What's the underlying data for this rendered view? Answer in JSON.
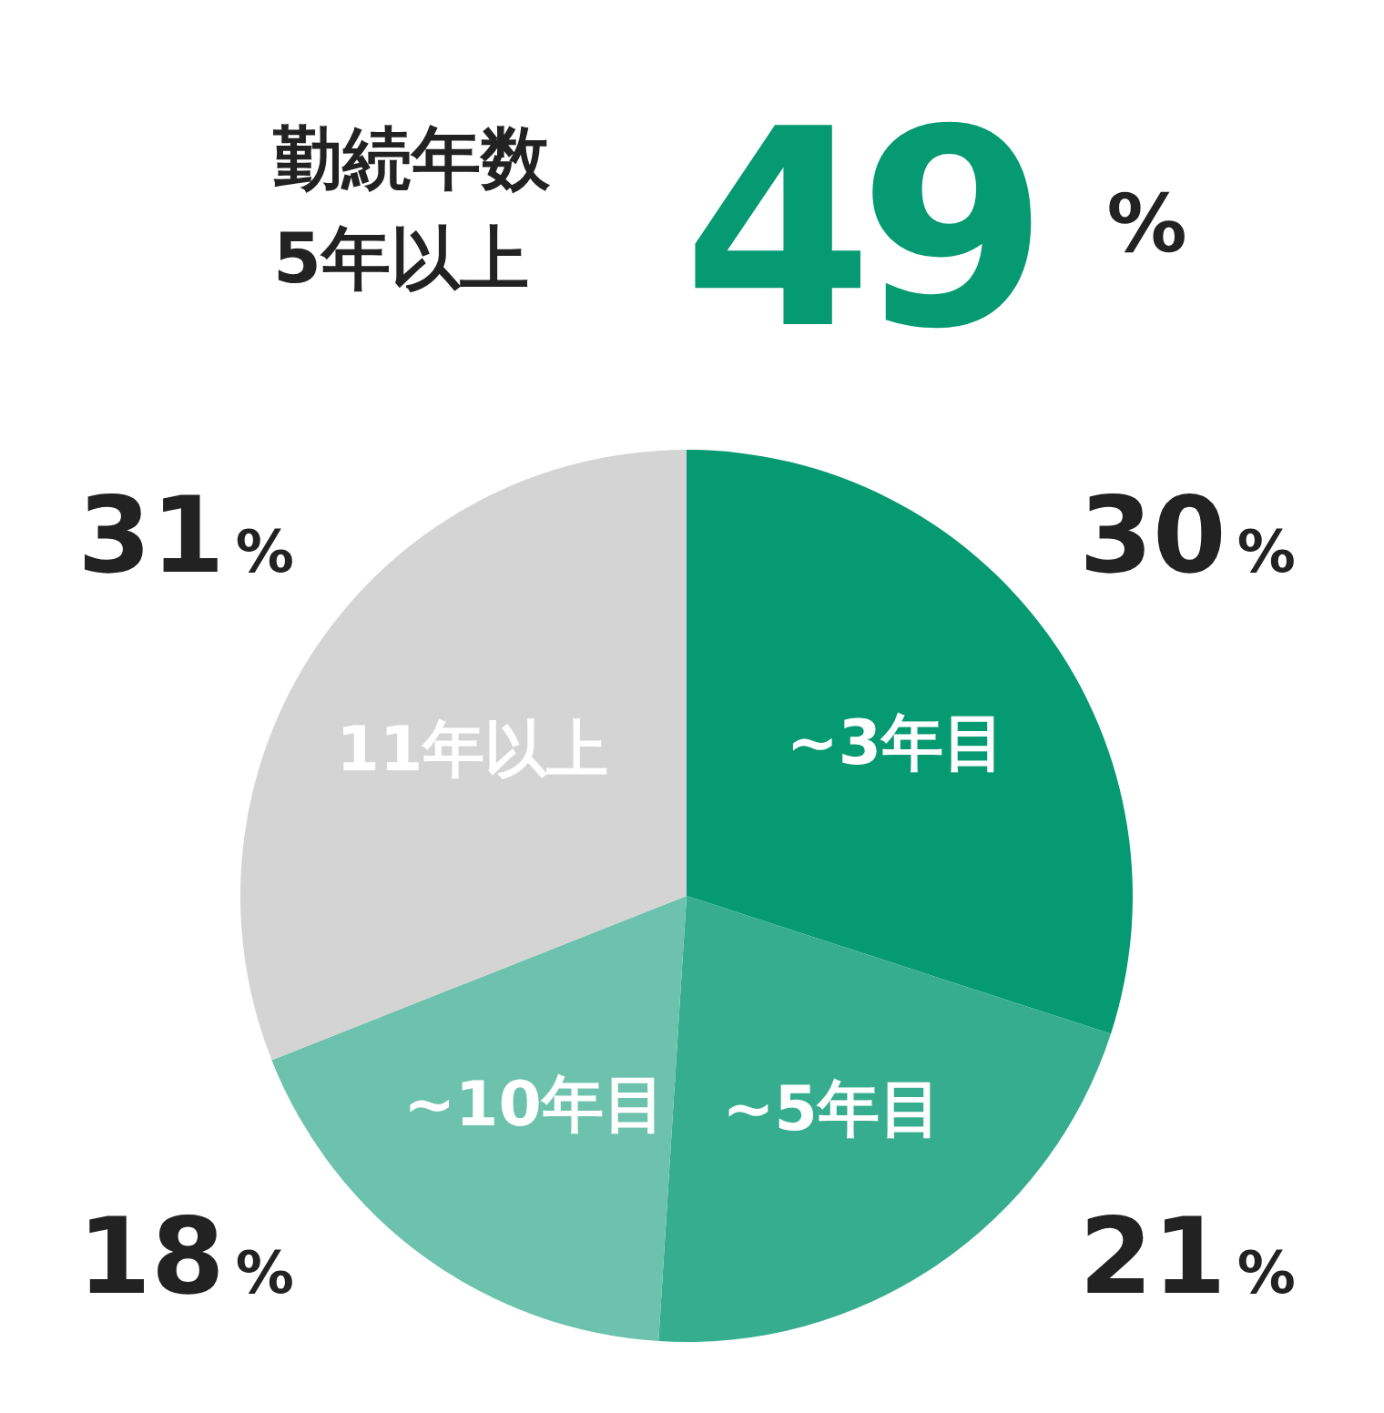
{
  "chart_data": {
    "type": "pie",
    "title": "勤続年数\n5年以上",
    "subtitle": "49%",
    "categories": [
      "~3年目",
      "~5年目",
      "~10年目",
      "11年以上"
    ],
    "values": [
      30,
      21,
      18,
      31
    ],
    "colors": [
      "#069a72",
      "#37ad90",
      "#6cc2ac",
      "#d4d4d4"
    ],
    "value_labels": [
      "30%",
      "21%",
      "18%",
      "31%"
    ]
  }
}
